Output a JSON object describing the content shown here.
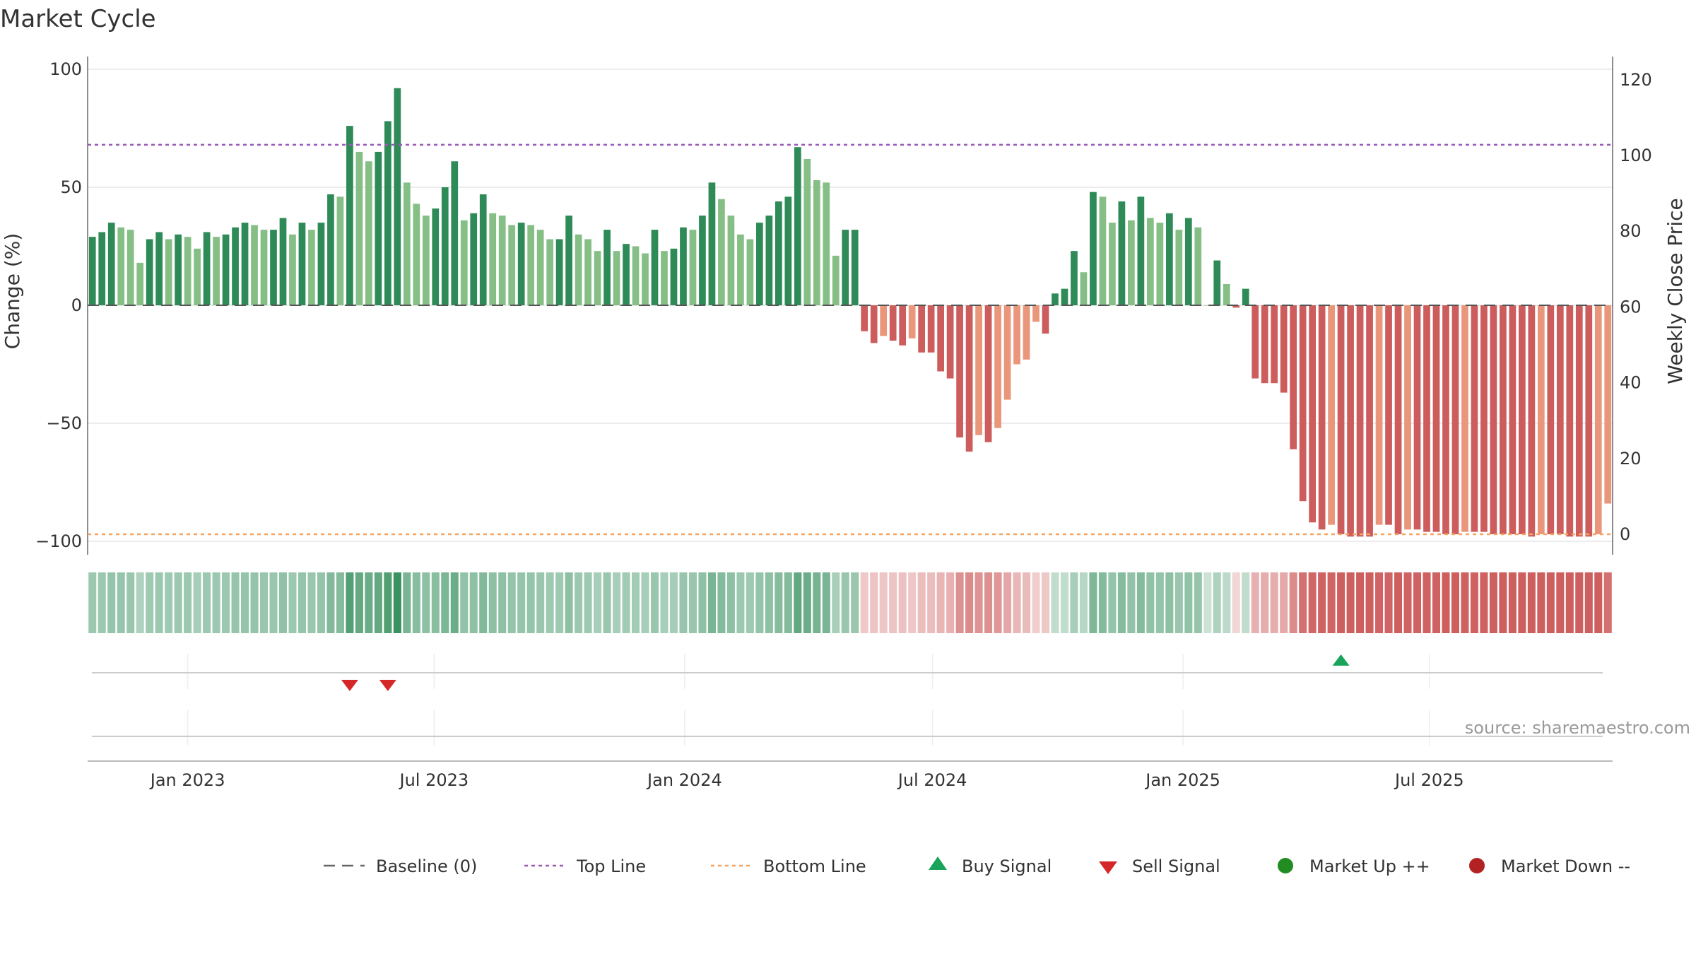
{
  "title": "Market Cycle",
  "source": "source: sharemaestro.com",
  "colors": {
    "up_dark": "#2e8b57",
    "up_light": "#86bf86",
    "down_dark": "#cd5c5c",
    "down_light": "#e9967a",
    "top_line": "#9b59b6",
    "bottom_line": "#f4a460",
    "baseline": "#555555",
    "buy": "#1aa35a",
    "sell": "#d62728",
    "market_up": "#228b22",
    "market_down": "#b22222",
    "grid": "#e5e5e5"
  },
  "legend": [
    {
      "label": "Baseline (0)",
      "icon": "dash-line-icon"
    },
    {
      "label": "Top Line",
      "icon": "dotted-purple-line-icon"
    },
    {
      "label": "Bottom Line",
      "icon": "dotted-orange-line-icon"
    },
    {
      "label": "Buy Signal",
      "icon": "triangle-up-icon"
    },
    {
      "label": "Sell Signal",
      "icon": "triangle-down-icon"
    },
    {
      "label": "Market Up ++",
      "icon": "green-dot-icon"
    },
    {
      "label": "Market Down --",
      "icon": "red-dot-icon"
    }
  ],
  "chart_data": {
    "type": "bar",
    "ylabel": "Change (%)",
    "y2label": "Weekly Close Price",
    "ylim": [
      -105,
      105
    ],
    "y2lim": [
      -1.5,
      123
    ],
    "yticks": [
      100,
      50,
      0,
      -50,
      -100
    ],
    "yticks_text": [
      "100",
      "50",
      "0",
      "−50",
      "−100"
    ],
    "y2ticks": [
      120,
      100,
      80,
      60,
      40,
      20,
      0
    ],
    "top_line": 68,
    "bottom_line": -97,
    "start_date": "2022-10-23",
    "week_step_days": 7,
    "xticks": [
      {
        "date": "2023-01-01",
        "label": "Jan 2023"
      },
      {
        "date": "2023-07-01",
        "label": "Jul 2023"
      },
      {
        "date": "2024-01-01",
        "label": "Jan 2024"
      },
      {
        "date": "2024-07-01",
        "label": "Jul 2024"
      },
      {
        "date": "2025-01-01",
        "label": "Jan 2025"
      },
      {
        "date": "2025-07-01",
        "label": "Jul 2025"
      }
    ],
    "values": [
      29,
      31,
      35,
      33,
      32,
      18,
      28,
      31,
      28,
      30,
      29,
      24,
      31,
      29,
      30,
      33,
      35,
      34,
      32,
      32,
      37,
      30,
      35,
      32,
      35,
      47,
      46,
      76,
      65,
      61,
      65,
      78,
      92,
      52,
      43,
      38,
      41,
      50,
      61,
      36,
      39,
      47,
      39,
      38,
      34,
      35,
      34,
      32,
      28,
      28,
      38,
      30,
      28,
      23,
      32,
      23,
      26,
      25,
      22,
      32,
      23,
      24,
      33,
      32,
      38,
      52,
      45,
      38,
      30,
      28,
      35,
      38,
      44,
      46,
      67,
      62,
      53,
      52,
      21,
      32,
      32,
      -11,
      -16,
      -13,
      -15,
      -17,
      -14,
      -20,
      -20,
      -28,
      -31,
      -56,
      -62,
      -55,
      -58,
      -52,
      -40,
      -25,
      -23,
      -7,
      -12,
      5,
      7,
      23,
      14,
      48,
      46,
      35,
      44,
      36,
      46,
      37,
      35,
      39,
      32,
      37,
      33,
      0,
      19,
      9,
      -1,
      7,
      -31,
      -33,
      -33,
      -37,
      -61,
      -83,
      -92,
      -95,
      -93,
      -97,
      -98,
      -98,
      -98,
      -93,
      -93,
      -97,
      -95,
      -95,
      -96,
      -96,
      -97,
      -97,
      -96,
      -96,
      -96,
      -97,
      -97,
      -97,
      -97,
      -98,
      -97,
      -97,
      -97,
      -98,
      -98,
      -98,
      -97,
      -84
    ],
    "signals": [
      {
        "type": "sell",
        "week": 27
      },
      {
        "type": "sell",
        "week": 31
      },
      {
        "type": "buy",
        "week": 131
      }
    ]
  }
}
